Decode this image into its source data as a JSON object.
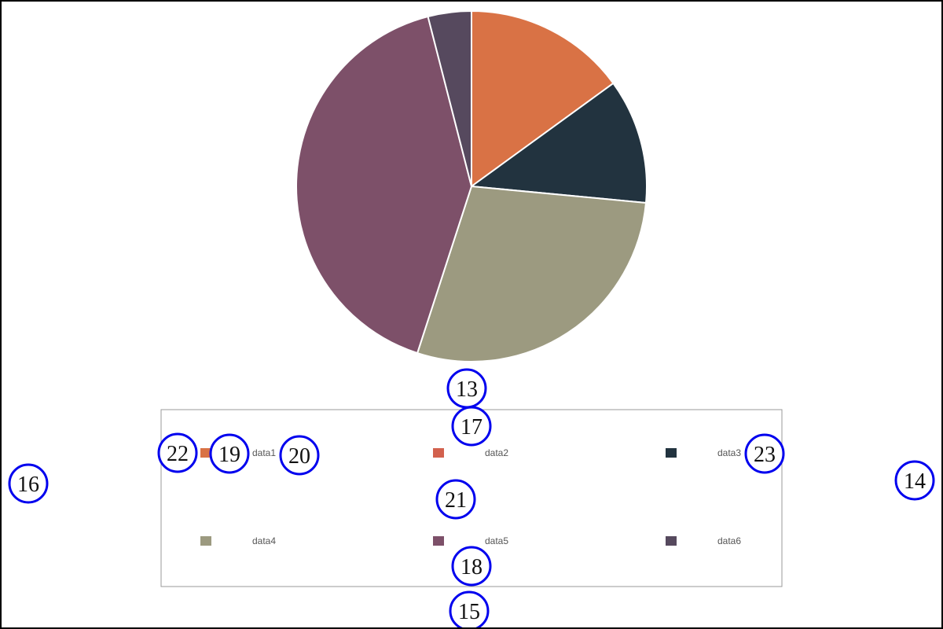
{
  "chart_data": {
    "type": "pie",
    "title": "",
    "slices": [
      {
        "label": "data1",
        "value": 15,
        "color": "#d97245"
      },
      {
        "label": "data2",
        "value": 0,
        "color": "#d2614e"
      },
      {
        "label": "data3",
        "value": 11.5,
        "color": "#22333f"
      },
      {
        "label": "data4",
        "value": 28.5,
        "color": "#9c9a80"
      },
      {
        "label": "data5",
        "value": 41,
        "color": "#7d5069"
      },
      {
        "label": "data6",
        "value": 4,
        "color": "#56495e"
      }
    ],
    "legend": {
      "placement": "bottom",
      "items": [
        "data1",
        "data2",
        "data3",
        "data4",
        "data5",
        "data6"
      ]
    }
  },
  "annotations": [
    {
      "id": "13",
      "label": "13"
    },
    {
      "id": "14",
      "label": "14"
    },
    {
      "id": "15",
      "label": "15"
    },
    {
      "id": "16",
      "label": "16"
    },
    {
      "id": "17",
      "label": "17"
    },
    {
      "id": "18",
      "label": "18"
    },
    {
      "id": "19",
      "label": "19"
    },
    {
      "id": "20",
      "label": "20"
    },
    {
      "id": "21",
      "label": "21"
    },
    {
      "id": "22",
      "label": "22"
    },
    {
      "id": "23",
      "label": "23"
    }
  ]
}
